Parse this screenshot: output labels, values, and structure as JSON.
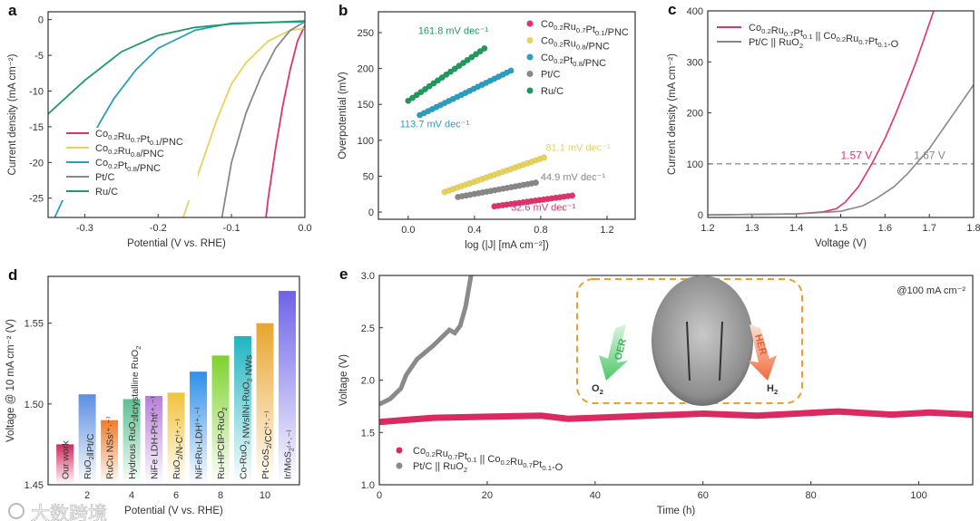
{
  "panels": {
    "a": "a",
    "b": "b",
    "c": "c",
    "d": "d",
    "e": "e"
  },
  "watermark": "大数跨境",
  "chart_data": [
    {
      "panel": "a",
      "type": "line",
      "xlabel": "Potential (V vs. RHE)",
      "ylabel": "Current density (mA cm⁻²)",
      "xlim": [
        -0.35,
        0.0
      ],
      "ylim": [
        -27.7,
        1.1
      ],
      "xticks": [
        {
          "v": -0.3,
          "label": "-0.3"
        },
        {
          "v": -0.2,
          "label": "-0.2"
        },
        {
          "v": -0.1,
          "label": "-0.1"
        },
        {
          "v": 0.0,
          "label": "0.0"
        }
      ],
      "yticks": [
        {
          "v": 0,
          "label": "0"
        },
        {
          "v": -5,
          "label": "-5"
        },
        {
          "v": -10,
          "label": "-10"
        },
        {
          "v": -15,
          "label": "-15"
        },
        {
          "v": -20,
          "label": "-20"
        },
        {
          "v": -25,
          "label": "-25"
        }
      ],
      "legend_position": "bottom-left",
      "series": [
        {
          "name": "Co0.2Ru0.7Pt0.1/PNC",
          "color": "#e0336b",
          "points": [
            [
              0,
              -0.8
            ],
            [
              -0.01,
              -3
            ],
            [
              -0.02,
              -7
            ],
            [
              -0.03,
              -12
            ],
            [
              -0.04,
              -18
            ],
            [
              -0.05,
              -25
            ],
            [
              -0.053,
              -27.7
            ]
          ]
        },
        {
          "name": "Co0.2Ru0.8/PNC",
          "color": "#e8d25a",
          "points": [
            [
              0,
              -1.2
            ],
            [
              -0.02,
              -1.5
            ],
            [
              -0.05,
              -3
            ],
            [
              -0.08,
              -6
            ],
            [
              -0.1,
              -9
            ],
            [
              -0.12,
              -14
            ],
            [
              -0.14,
              -20
            ],
            [
              -0.166,
              -27.7
            ]
          ]
        },
        {
          "name": "Co0.2Pt0.8/PNC",
          "color": "#2a9ec0",
          "points": [
            [
              0,
              -0.3
            ],
            [
              -0.1,
              -0.5
            ],
            [
              -0.15,
              -1.5
            ],
            [
              -0.2,
              -4
            ],
            [
              -0.23,
              -7
            ],
            [
              -0.26,
              -11
            ],
            [
              -0.28,
              -14.5
            ],
            [
              -0.3,
              -18.5
            ],
            [
              -0.32,
              -23
            ],
            [
              -0.341,
              -27.7
            ]
          ]
        },
        {
          "name": "Pt/C",
          "color": "#888888",
          "points": [
            [
              0,
              -0.3
            ],
            [
              -0.02,
              -1.5
            ],
            [
              -0.04,
              -4
            ],
            [
              -0.06,
              -8
            ],
            [
              -0.08,
              -13
            ],
            [
              -0.1,
              -20
            ],
            [
              -0.113,
              -27.7
            ]
          ]
        },
        {
          "name": "Ru/C",
          "color": "#1f9a6a",
          "points": [
            [
              0,
              -0.2
            ],
            [
              -0.1,
              -0.6
            ],
            [
              -0.15,
              -1.1
            ],
            [
              -0.2,
              -2.2
            ],
            [
              -0.25,
              -4.5
            ],
            [
              -0.3,
              -8.5
            ],
            [
              -0.35,
              -13.2
            ]
          ]
        }
      ]
    },
    {
      "panel": "b",
      "type": "scatter",
      "xlabel": "log (|J| [mA cm⁻²])",
      "ylabel": "Overpotential (mV)",
      "xlim": [
        -0.18,
        1.37
      ],
      "ylim": [
        -10,
        279
      ],
      "xticks": [
        {
          "v": 0.0,
          "label": "0.0"
        },
        {
          "v": 0.4,
          "label": "0.4"
        },
        {
          "v": 0.8,
          "label": "0.8"
        },
        {
          "v": 1.2,
          "label": "1.2"
        }
      ],
      "yticks": [
        {
          "v": 0,
          "label": "0"
        },
        {
          "v": 50,
          "label": "50"
        },
        {
          "v": 100,
          "label": "100"
        },
        {
          "v": 150,
          "label": "150"
        },
        {
          "v": 200,
          "label": "200"
        },
        {
          "v": 250,
          "label": "250"
        }
      ],
      "legend_position": "top-right",
      "series": [
        {
          "name": "Co0.2Ru0.7Pt0.1/PNC",
          "color": "#e0336b",
          "start": [
            0.52,
            8
          ],
          "end": [
            0.99,
            23
          ],
          "tafel_slope": "32.6 mV dec⁻¹"
        },
        {
          "name": "Co0.2Ru0.8/PNC",
          "color": "#e8d25a",
          "start": [
            0.22,
            28
          ],
          "end": [
            0.82,
            76
          ],
          "tafel_slope": "81.1 mV dec⁻¹"
        },
        {
          "name": "Co0.2Pt0.8/PNC",
          "color": "#2a9ec0",
          "start": [
            0.07,
            135
          ],
          "end": [
            0.62,
            197
          ],
          "tafel_slope": "113.7 mV dec⁻¹"
        },
        {
          "name": "Pt/C",
          "color": "#888888",
          "start": [
            0.3,
            21
          ],
          "end": [
            0.77,
            41
          ],
          "tafel_slope": "44.9 mV dec⁻¹"
        },
        {
          "name": "Ru/C",
          "color": "#1f9a5a",
          "start": [
            0.0,
            155
          ],
          "end": [
            0.46,
            228
          ],
          "tafel_slope": "161.8 mV dec⁻¹"
        }
      ]
    },
    {
      "panel": "c",
      "type": "line",
      "xlabel": "Voltage (V)",
      "ylabel": "Current density (mA cm⁻²)",
      "xlim": [
        1.2,
        1.8
      ],
      "ylim": [
        -5,
        400
      ],
      "xticks": [
        {
          "v": 1.2,
          "label": "1.2"
        },
        {
          "v": 1.3,
          "label": "1.3"
        },
        {
          "v": 1.4,
          "label": "1.4"
        },
        {
          "v": 1.5,
          "label": "1.5"
        },
        {
          "v": 1.6,
          "label": "1.6"
        },
        {
          "v": 1.7,
          "label": "1.7"
        },
        {
          "v": 1.8,
          "label": "1.8"
        }
      ],
      "yticks": [
        {
          "v": 0,
          "label": "0"
        },
        {
          "v": 100,
          "label": "100"
        },
        {
          "v": 200,
          "label": "200"
        },
        {
          "v": 300,
          "label": "300"
        },
        {
          "v": 400,
          "label": "400"
        }
      ],
      "legend_position": "top-left",
      "reference_line": 100,
      "series": [
        {
          "name": "Co0.2Ru0.7Pt0.1 || Co0.2Ru0.7Pt0.1-O",
          "color": "#e0336b",
          "points": [
            [
              1.2,
              0
            ],
            [
              1.4,
              2
            ],
            [
              1.46,
              6
            ],
            [
              1.49,
              12
            ],
            [
              1.51,
              25
            ],
            [
              1.54,
              55
            ],
            [
              1.57,
              100
            ],
            [
              1.6,
              150
            ],
            [
              1.625,
              200
            ],
            [
              1.65,
              255
            ],
            [
              1.67,
              300
            ],
            [
              1.69,
              350
            ],
            [
              1.71,
              400
            ]
          ],
          "annotation": "1.57 V"
        },
        {
          "name": "Pt/C || RuO2",
          "color": "#888888",
          "points": [
            [
              1.2,
              0
            ],
            [
              1.4,
              2
            ],
            [
              1.5,
              7
            ],
            [
              1.55,
              18
            ],
            [
              1.58,
              32
            ],
            [
              1.62,
              55
            ],
            [
              1.65,
              80
            ],
            [
              1.67,
              100
            ],
            [
              1.7,
              130
            ],
            [
              1.72,
              155
            ],
            [
              1.76,
              205
            ],
            [
              1.8,
              255
            ]
          ],
          "annotation": "1.67 V"
        }
      ]
    },
    {
      "panel": "d",
      "type": "bar",
      "xlabel": "Potential (V vs. RHE)",
      "ylabel": "Voltage @ 10 mA cm⁻² (V)",
      "xlim": [
        0.24,
        11.55
      ],
      "ylim": [
        1.45,
        1.579
      ],
      "xticks": [
        {
          "v": 2,
          "label": "2"
        },
        {
          "v": 4,
          "label": "4"
        },
        {
          "v": 6,
          "label": "6"
        },
        {
          "v": 8,
          "label": "8"
        },
        {
          "v": 10,
          "label": "10"
        }
      ],
      "yticks": [
        {
          "v": 1.45,
          "label": "1.45"
        },
        {
          "v": 1.5,
          "label": "1.50"
        },
        {
          "v": 1.55,
          "label": "1.55"
        }
      ],
      "x": [
        1,
        2,
        3,
        4,
        5,
        6,
        7,
        8,
        9,
        10,
        11
      ],
      "categories": [
        "Our work",
        "RuO2‖Pt/C",
        "RuCu NSs⁽⁺·⁻⁾",
        "Hydrous RuO2‖crystalline RuO2",
        "NiFe LDH-Pt-ht⁽⁺·⁻⁾",
        "RuO2/N-C⁽⁺·⁻⁾",
        "NiFeRu-LDH⁽⁺·⁻⁾",
        "Ru-HPC‖P-RuO2",
        "Co-RuO2 NWs‖Ni-RuO2 NWs",
        "Pt-CoS2/CC⁽⁺·⁻⁾",
        "Ir/MoS2⁽⁺·⁻⁾"
      ],
      "values": [
        1.475,
        1.506,
        1.49,
        1.503,
        1.505,
        1.507,
        1.52,
        1.53,
        1.542,
        1.55,
        1.57
      ],
      "colors": [
        "#d0285a",
        "#5b8fe0",
        "#ef7d2a",
        "#5cc090",
        "#b57ed8",
        "#f2c23a",
        "#2e8fe8",
        "#7fd22e",
        "#1fb5c0",
        "#e9a52e",
        "#6f62e8"
      ]
    },
    {
      "panel": "e",
      "type": "line",
      "xlabel": "Time (h)",
      "ylabel": "Voltage (V)",
      "xlim": [
        0,
        110
      ],
      "ylim": [
        1.0,
        3.0
      ],
      "xticks": [
        {
          "v": 0,
          "label": "0"
        },
        {
          "v": 20,
          "label": "20"
        },
        {
          "v": 40,
          "label": "40"
        },
        {
          "v": 60,
          "label": "60"
        },
        {
          "v": 80,
          "label": "80"
        },
        {
          "v": 100,
          "label": "100"
        }
      ],
      "yticks": [
        {
          "v": 1.0,
          "label": "1.0"
        },
        {
          "v": 1.5,
          "label": "1.5"
        },
        {
          "v": 2.0,
          "label": "2.0"
        },
        {
          "v": 2.5,
          "label": "2.5"
        },
        {
          "v": 3.0,
          "label": "3.0"
        }
      ],
      "condition": "@100 mA cm⁻²",
      "legend_position": "bottom-left",
      "inset": {
        "left_arrow": "OER",
        "right_arrow": "HER",
        "left_product": "O2",
        "right_product": "H2"
      },
      "series": [
        {
          "name": "Co0.2Ru0.7Pt0.1 || Co0.2Ru0.7Pt0.1-O",
          "color": "#d92a62",
          "points": [
            [
              0,
              1.6
            ],
            [
              5,
              1.62
            ],
            [
              10,
              1.64
            ],
            [
              20,
              1.65
            ],
            [
              30,
              1.66
            ],
            [
              35,
              1.63
            ],
            [
              40,
              1.64
            ],
            [
              50,
              1.66
            ],
            [
              60,
              1.68
            ],
            [
              70,
              1.66
            ],
            [
              85,
              1.7
            ],
            [
              95,
              1.67
            ],
            [
              102,
              1.69
            ],
            [
              110,
              1.67
            ]
          ]
        },
        {
          "name": "Pt/C || RuO2",
          "color": "#8a8a8a",
          "points": [
            [
              0,
              1.77
            ],
            [
              2,
              1.82
            ],
            [
              4,
              1.92
            ],
            [
              5,
              2.05
            ],
            [
              7,
              2.2
            ],
            [
              10,
              2.33
            ],
            [
              13,
              2.48
            ],
            [
              14,
              2.45
            ],
            [
              15,
              2.52
            ],
            [
              16,
              2.7
            ],
            [
              17,
              3.0
            ]
          ]
        }
      ]
    }
  ]
}
